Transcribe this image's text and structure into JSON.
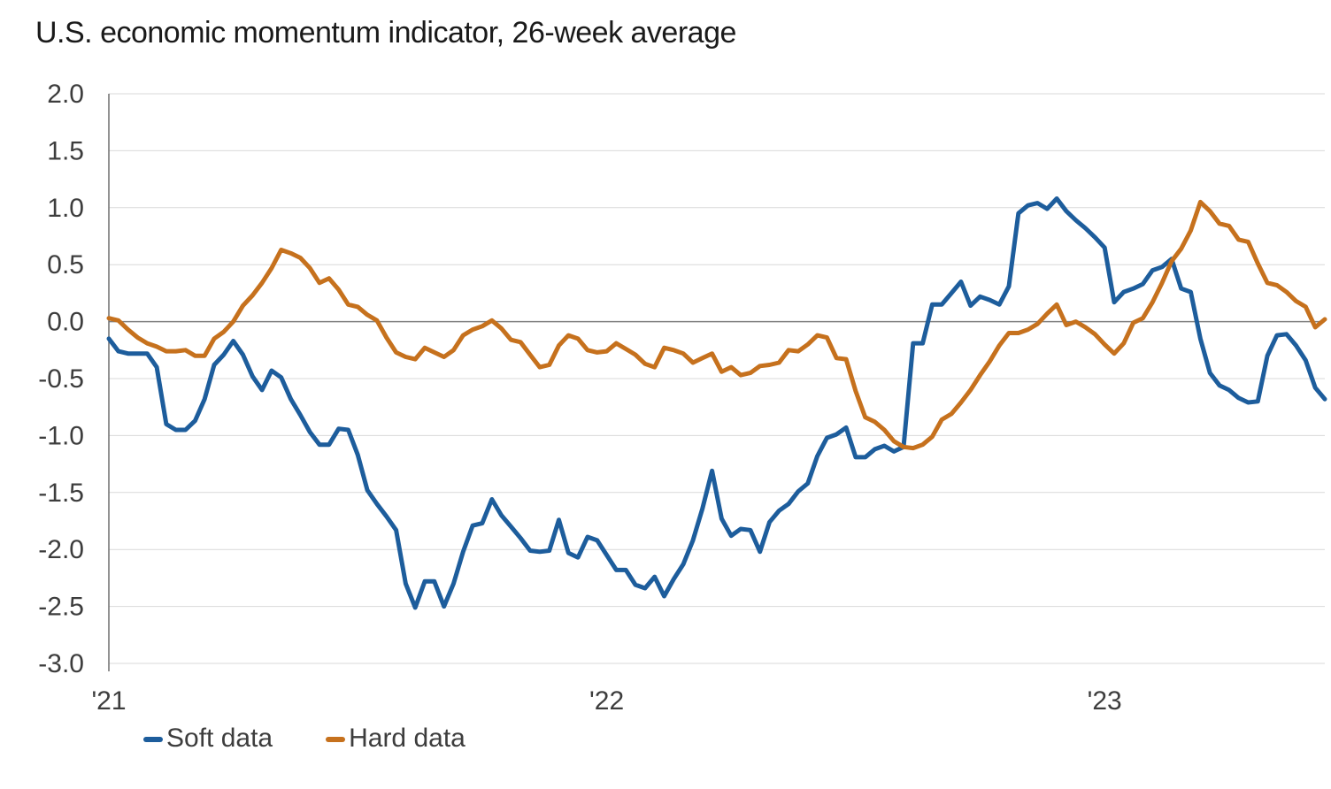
{
  "title": "U.S. economic momentum indicator, 26-week average",
  "colors": {
    "soft_line": "#1d5d9c",
    "hard_line": "#c6711d",
    "gridline": "#d9d9d9",
    "zero_line": "#808080",
    "axis_line": "#6e6e6e",
    "tick_text": "#3d3d3d",
    "title_text": "#1a1a1a"
  },
  "legend": {
    "items": [
      {
        "label": "Soft data",
        "series": "soft_line"
      },
      {
        "label": "Hard data",
        "series": "hard_line"
      }
    ]
  },
  "chart_data": {
    "type": "line",
    "title": "U.S. economic momentum indicator, 26-week average",
    "frequency": "weekly",
    "grid": true,
    "legend_position": "bottom-left",
    "ylim": [
      -3.0,
      2.0
    ],
    "y_ticks": [
      {
        "label": "2.0",
        "value": 2.0
      },
      {
        "label": "1.5",
        "value": 1.5
      },
      {
        "label": "1.0",
        "value": 1.0
      },
      {
        "label": "0.5",
        "value": 0.5
      },
      {
        "label": "0.0",
        "value": 0.0
      },
      {
        "label": "-0.5",
        "value": -0.5
      },
      {
        "label": "-1.0",
        "value": -1.0
      },
      {
        "label": "-1.5",
        "value": -1.5
      },
      {
        "label": "-2.0",
        "value": -2.0
      },
      {
        "label": "-2.5",
        "value": -2.5
      },
      {
        "label": "-3.0",
        "value": -3.0
      }
    ],
    "x_ticks": [
      {
        "label": "'21",
        "week": 0
      },
      {
        "label": "'22",
        "week": 52
      },
      {
        "label": "'23",
        "week": 104
      }
    ],
    "series": [
      {
        "name": "Soft data",
        "color_key": "soft_line",
        "values": [
          -0.15,
          -0.26,
          -0.28,
          -0.28,
          -0.28,
          -0.4,
          -0.9,
          -0.95,
          -0.95,
          -0.87,
          -0.68,
          -0.38,
          -0.29,
          -0.17,
          -0.29,
          -0.48,
          -0.6,
          -0.43,
          -0.49,
          -0.68,
          -0.82,
          -0.97,
          -1.08,
          -1.08,
          -0.94,
          -0.95,
          -1.17,
          -1.48,
          -1.6,
          -1.71,
          -1.83,
          -2.3,
          -2.51,
          -2.28,
          -2.28,
          -2.5,
          -2.3,
          -2.02,
          -1.79,
          -1.77,
          -1.56,
          -1.7,
          -1.8,
          -1.9,
          -2.01,
          -2.02,
          -2.01,
          -1.74,
          -2.03,
          -2.07,
          -1.89,
          -1.92,
          -2.05,
          -2.18,
          -2.18,
          -2.31,
          -2.34,
          -2.24,
          -2.41,
          -2.26,
          -2.13,
          -1.92,
          -1.64,
          -1.31,
          -1.73,
          -1.88,
          -1.82,
          -1.83,
          -2.02,
          -1.76,
          -1.66,
          -1.6,
          -1.49,
          -1.42,
          -1.18,
          -1.02,
          -0.99,
          -0.93,
          -1.19,
          -1.19,
          -1.12,
          -1.09,
          -1.14,
          -1.1,
          -0.19,
          -0.19,
          0.15,
          0.15,
          0.25,
          0.35,
          0.14,
          0.22,
          0.19,
          0.15,
          0.31,
          0.95,
          1.02,
          1.04,
          0.99,
          1.08,
          0.97,
          0.89,
          0.82,
          0.74,
          0.65,
          0.17,
          0.26,
          0.29,
          0.33,
          0.45,
          0.48,
          0.55,
          0.29,
          0.26,
          -0.15,
          -0.45,
          -0.56,
          -0.6,
          -0.67,
          -0.71,
          -0.7,
          -0.3,
          -0.12,
          -0.11,
          -0.21,
          -0.34,
          -0.58,
          -0.68
        ]
      },
      {
        "name": "Hard data",
        "color_key": "hard_line",
        "values": [
          0.03,
          0.01,
          -0.07,
          -0.14,
          -0.19,
          -0.22,
          -0.26,
          -0.26,
          -0.25,
          -0.3,
          -0.3,
          -0.15,
          -0.09,
          0.0,
          0.14,
          0.23,
          0.34,
          0.47,
          0.63,
          0.6,
          0.56,
          0.47,
          0.34,
          0.38,
          0.28,
          0.15,
          0.13,
          0.06,
          0.01,
          -0.14,
          -0.27,
          -0.31,
          -0.33,
          -0.23,
          -0.27,
          -0.31,
          -0.25,
          -0.12,
          -0.07,
          -0.04,
          0.01,
          -0.06,
          -0.16,
          -0.18,
          -0.29,
          -0.4,
          -0.38,
          -0.21,
          -0.12,
          -0.15,
          -0.25,
          -0.27,
          -0.26,
          -0.19,
          -0.24,
          -0.29,
          -0.37,
          -0.4,
          -0.23,
          -0.25,
          -0.28,
          -0.36,
          -0.32,
          -0.28,
          -0.44,
          -0.4,
          -0.47,
          -0.45,
          -0.39,
          -0.38,
          -0.36,
          -0.25,
          -0.26,
          -0.2,
          -0.12,
          -0.14,
          -0.32,
          -0.33,
          -0.61,
          -0.84,
          -0.88,
          -0.95,
          -1.05,
          -1.1,
          -1.11,
          -1.08,
          -1.01,
          -0.86,
          -0.81,
          -0.71,
          -0.6,
          -0.47,
          -0.35,
          -0.21,
          -0.1,
          -0.1,
          -0.07,
          -0.02,
          0.07,
          0.15,
          -0.03,
          0.0,
          -0.05,
          -0.11,
          -0.2,
          -0.28,
          -0.19,
          -0.01,
          0.03,
          0.17,
          0.34,
          0.53,
          0.64,
          0.8,
          1.05,
          0.97,
          0.86,
          0.84,
          0.72,
          0.7,
          0.51,
          0.34,
          0.32,
          0.26,
          0.18,
          0.13,
          -0.05,
          0.02
        ]
      }
    ]
  }
}
